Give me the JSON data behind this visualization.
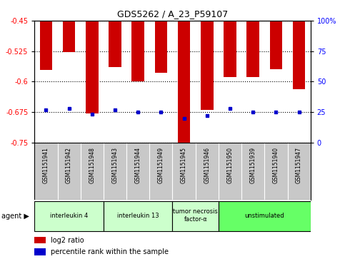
{
  "title": "GDS5262 / A_23_P59107",
  "samples": [
    "GSM1151941",
    "GSM1151942",
    "GSM1151948",
    "GSM1151943",
    "GSM1151944",
    "GSM1151949",
    "GSM1151945",
    "GSM1151946",
    "GSM1151950",
    "GSM1151939",
    "GSM1151940",
    "GSM1151947"
  ],
  "log2_ratio": [
    -0.572,
    -0.527,
    -0.678,
    -0.565,
    -0.6,
    -0.578,
    -0.754,
    -0.67,
    -0.588,
    -0.588,
    -0.57,
    -0.618
  ],
  "percentile_rank": [
    27,
    28,
    23,
    27,
    25,
    25,
    20,
    22,
    28,
    25,
    25,
    25
  ],
  "groups_info": [
    {
      "label": "interleukin 4",
      "indices": [
        0,
        1,
        2
      ],
      "color": "#ccffcc"
    },
    {
      "label": "interleukin 13",
      "indices": [
        3,
        4,
        5
      ],
      "color": "#ccffcc"
    },
    {
      "label": "tumor necrosis\nfactor-α",
      "indices": [
        6,
        7
      ],
      "color": "#ccffcc"
    },
    {
      "label": "unstimulated",
      "indices": [
        8,
        9,
        10,
        11
      ],
      "color": "#66ff66"
    }
  ],
  "ylim_left": [
    -0.75,
    -0.45
  ],
  "ylim_right": [
    0,
    100
  ],
  "yticks_left": [
    -0.75,
    -0.675,
    -0.6,
    -0.525,
    -0.45
  ],
  "yticks_right": [
    0,
    25,
    50,
    75,
    100
  ],
  "bar_color": "#cc0000",
  "dot_color": "#0000cc",
  "bg_color": "#ffffff",
  "legend_log2_label": "log2 ratio",
  "legend_pct_label": "percentile rank within the sample",
  "bar_width": 0.55
}
